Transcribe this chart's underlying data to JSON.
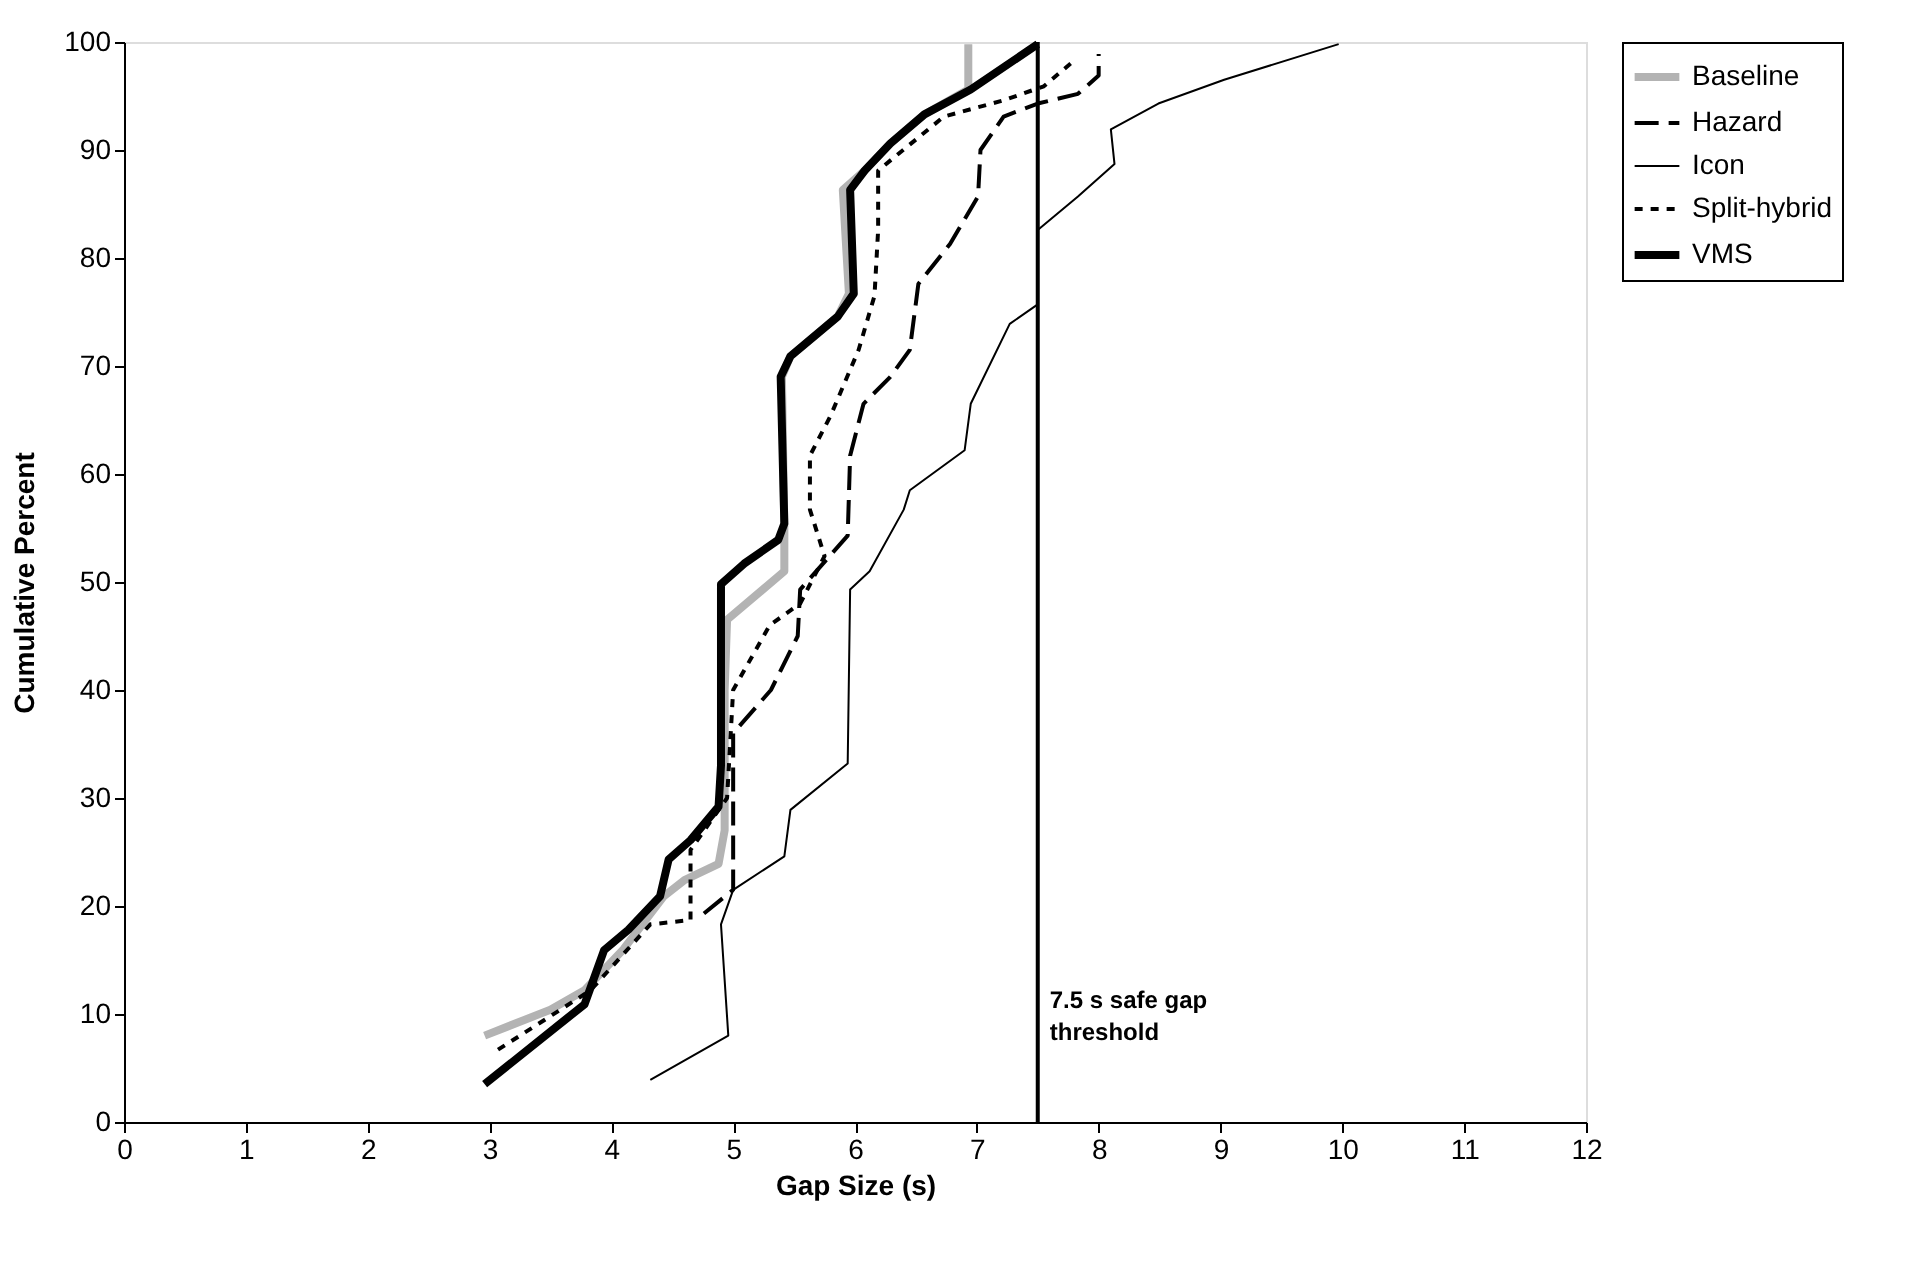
{
  "chart_data": {
    "type": "line",
    "xlabel": "Gap Size (s)",
    "ylabel": "Cumulative Percent",
    "xlim": [
      0,
      12
    ],
    "xticks": [
      0,
      1,
      2,
      3,
      4,
      5,
      6,
      7,
      8,
      9,
      10,
      11,
      12
    ],
    "ylim": [
      0,
      100
    ],
    "yticks": [
      0,
      10,
      20,
      30,
      40,
      50,
      60,
      70,
      80,
      90,
      100
    ],
    "grid": false,
    "legend": "right",
    "marker": "none",
    "series": [
      {
        "name": "Baseline",
        "color": "#b3b3b3",
        "line_style": "solid",
        "x": [
          2.96,
          3.5,
          3.78,
          4.1,
          4.43,
          4.6,
          4.88,
          4.93,
          4.93,
          4.95,
          5.42,
          5.42,
          5.4,
          5.47,
          5.86,
          5.95,
          5.9,
          6.08,
          6.29,
          6.57,
          6.93,
          6.93
        ],
        "values": [
          8,
          10.4,
          12.2,
          16,
          20.9,
          22.4,
          23.9,
          27,
          40,
          46.5,
          51,
          55,
          69,
          70.9,
          74.6,
          76.7,
          86.3,
          88.1,
          90.6,
          93.3,
          95.6,
          99.8
        ]
      },
      {
        "name": "Hazard",
        "color": "#000000",
        "line_style": "dashed",
        "x": [
          4.76,
          5.0,
          5.0,
          5.31,
          5.53,
          5.55,
          5.94,
          5.96,
          6.07,
          6.29,
          6.45,
          6.52,
          6.78,
          7.01,
          7.03,
          7.22,
          7.5,
          7.83,
          8.0,
          8.0
        ],
        "values": [
          19.3,
          21.5,
          36,
          40,
          45,
          49.3,
          54.3,
          61.7,
          66.5,
          69,
          71.5,
          77.6,
          81.3,
          85.7,
          90,
          93.1,
          94.3,
          95.2,
          96.9,
          98.9
        ]
      },
      {
        "name": "Icon",
        "color": "#000000",
        "line_style": "solid",
        "x": [
          4.32,
          4.96,
          4.9,
          5.0,
          5.42,
          5.47,
          5.94,
          5.96,
          6.12,
          6.4,
          6.45,
          6.9,
          6.95,
          7.27,
          7.5,
          7.5,
          7.83,
          8.13,
          8.1,
          8.49,
          9.03,
          9.97
        ],
        "values": [
          3.9,
          8,
          18.3,
          21.5,
          24.6,
          28.9,
          33.2,
          49.3,
          51,
          56.7,
          58.5,
          62.2,
          66.5,
          73.9,
          75.7,
          82.6,
          85.7,
          88.7,
          91.9,
          94.3,
          96.5,
          99.8
        ]
      },
      {
        "name": "Split-hybrid",
        "color": "#000000",
        "line_style": "dotted",
        "x": [
          3.07,
          3.5,
          3.83,
          4.32,
          4.65,
          4.65,
          4.95,
          5.0,
          5.3,
          5.55,
          5.75,
          5.63,
          5.63,
          5.8,
          6.03,
          6.16,
          6.19,
          6.19,
          6.73,
          7.22,
          7.55,
          7.8
        ],
        "values": [
          6.7,
          9.8,
          12.2,
          18.3,
          18.7,
          25.2,
          30,
          40,
          46,
          48,
          52.4,
          56.7,
          61.7,
          65.4,
          71.5,
          76.5,
          82.6,
          88.1,
          93.1,
          94.6,
          95.9,
          98.3
        ]
      },
      {
        "name": "VMS",
        "color": "#000000",
        "line_style": "solid",
        "x": [
          2.96,
          3.78,
          3.94,
          4.14,
          4.4,
          4.47,
          4.65,
          4.88,
          4.9,
          4.9,
          4.9,
          5.09,
          5.37,
          5.42,
          5.39,
          5.47,
          5.86,
          5.99,
          5.96,
          6.08,
          6.29,
          6.57,
          6.95,
          7.5
        ],
        "values": [
          3.5,
          10.9,
          15.9,
          17.8,
          20.9,
          24.3,
          26.1,
          29.2,
          33,
          45.6,
          49.8,
          51.7,
          53.9,
          55.4,
          69,
          70.9,
          74.6,
          76.7,
          86.3,
          88.1,
          90.6,
          93.3,
          95.6,
          99.8
        ]
      }
    ],
    "ref_lines": [
      {
        "axis": "x",
        "value": 7.5,
        "label": "7.5 s safe gap threshold",
        "color": "#000000"
      }
    ]
  }
}
